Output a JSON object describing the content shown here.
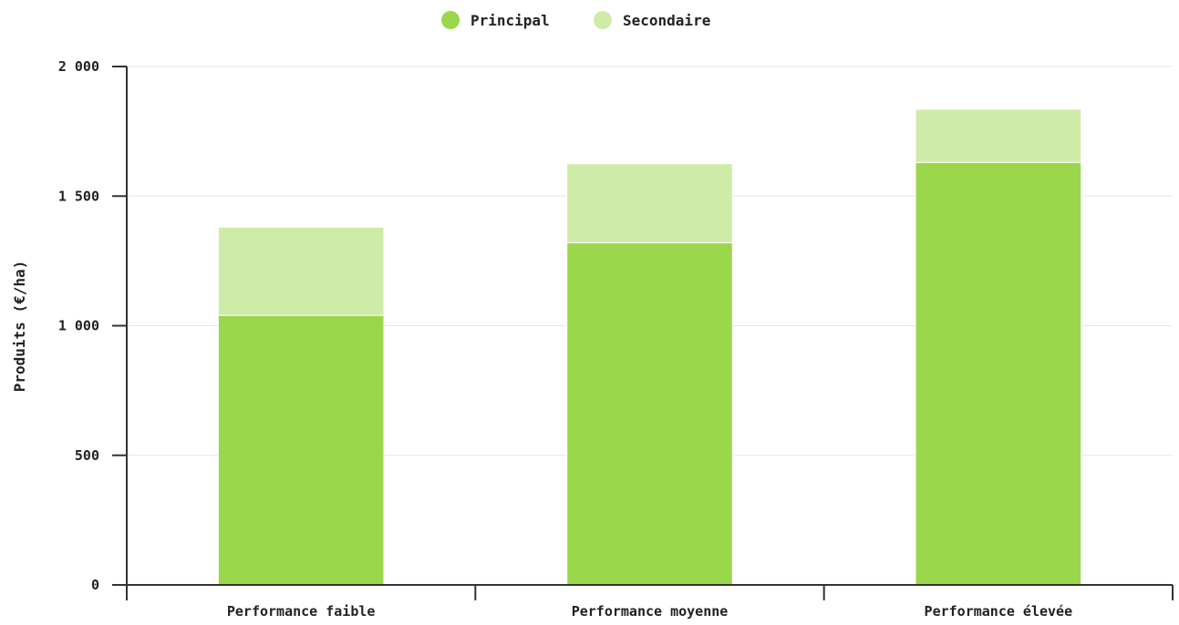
{
  "chart_data": {
    "type": "bar",
    "stacked": true,
    "categories": [
      "Performance faible",
      "Performance moyenne",
      "Performance élevée"
    ],
    "series": [
      {
        "name": "Principal",
        "values": [
          1040,
          1320,
          1630
        ],
        "color": "#9ad74a"
      },
      {
        "name": "Secondaire",
        "values": [
          340,
          305,
          205
        ],
        "color": "#cfeba8"
      }
    ],
    "xlabel": "",
    "ylabel": "Produits (€/ha)",
    "ylim": [
      0,
      2000
    ],
    "yticks": [
      0,
      500,
      1000,
      1500,
      2000
    ],
    "ytick_labels": [
      "0",
      "500",
      "1 000",
      "1 500",
      "2 000"
    ],
    "grid": true,
    "legend_position": "top-center"
  }
}
